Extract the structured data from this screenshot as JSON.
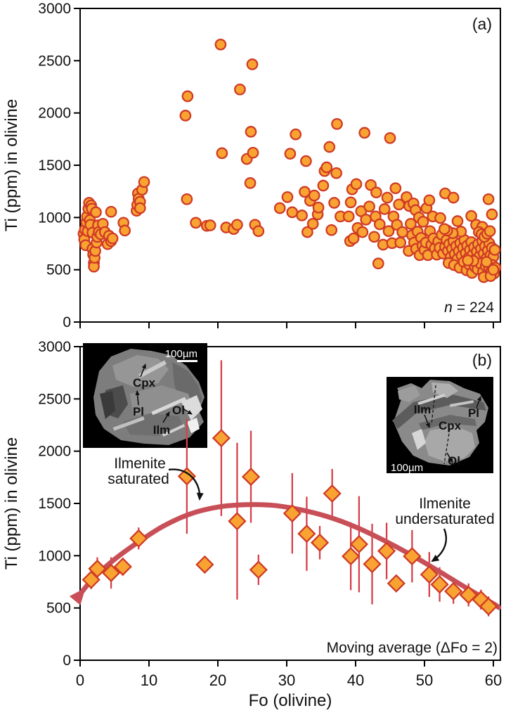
{
  "colors": {
    "marker_fill": "#F9A332",
    "marker_stroke": "#CF3B25",
    "error_bar": "#D6404B",
    "curve": "#C84F57",
    "text": "#111111",
    "background": "#FFFFFF"
  },
  "chart_data": [
    {
      "type": "scatter",
      "panel": "(a)",
      "xlabel": "Fo (olivine)",
      "ylabel": "Ti (ppm) in olivine",
      "xlim": [
        0,
        61
      ],
      "ylim": [
        0,
        3000
      ],
      "xticks": [
        0,
        10,
        20,
        30,
        40,
        50,
        60
      ],
      "yticks": [
        0,
        500,
        1000,
        1500,
        2000,
        2500,
        3000
      ],
      "n_label": {
        "italic": "n",
        "rest": "= 224"
      },
      "points": [
        [
          0.5,
          845
        ],
        [
          0.6,
          790
        ],
        [
          0.7,
          885
        ],
        [
          0.8,
          735
        ],
        [
          0.9,
          955
        ],
        [
          1.0,
          1010
        ],
        [
          1.1,
          870
        ],
        [
          1.2,
          1085
        ],
        [
          1.3,
          1140
        ],
        [
          1.4,
          975
        ],
        [
          1.5,
          930
        ],
        [
          1.6,
          1115
        ],
        [
          1.7,
          1085
        ],
        [
          1.8,
          855
        ],
        [
          1.8,
          700
        ],
        [
          1.9,
          645
        ],
        [
          2.0,
          565
        ],
        [
          2.0,
          530
        ],
        [
          2.1,
          615
        ],
        [
          2.2,
          680
        ],
        [
          2.3,
          1050
        ],
        [
          2.4,
          760
        ],
        [
          2.5,
          815
        ],
        [
          2.6,
          925
        ],
        [
          2.7,
          860
        ],
        [
          3.0,
          840
        ],
        [
          3.3,
          940
        ],
        [
          3.6,
          860
        ],
        [
          4.0,
          745
        ],
        [
          4.2,
          825
        ],
        [
          4.5,
          775
        ],
        [
          4.5,
          1055
        ],
        [
          4.7,
          800
        ],
        [
          6.3,
          950
        ],
        [
          6.5,
          875
        ],
        [
          8.2,
          1065
        ],
        [
          8.3,
          1120
        ],
        [
          8.4,
          1230
        ],
        [
          8.5,
          1180
        ],
        [
          8.7,
          1150
        ],
        [
          8.7,
          1090
        ],
        [
          9.0,
          1265
        ],
        [
          9.3,
          1340
        ],
        [
          15.3,
          1975
        ],
        [
          15.5,
          1175
        ],
        [
          15.6,
          2160
        ],
        [
          16.8,
          950
        ],
        [
          18.4,
          920
        ],
        [
          18.9,
          925
        ],
        [
          20.4,
          2655
        ],
        [
          20.6,
          1615
        ],
        [
          21.2,
          905
        ],
        [
          22.3,
          890
        ],
        [
          22.8,
          930
        ],
        [
          23.2,
          2225
        ],
        [
          24.2,
          1560
        ],
        [
          24.7,
          1330
        ],
        [
          24.8,
          1820
        ],
        [
          25.0,
          2465
        ],
        [
          25.1,
          1620
        ],
        [
          25.4,
          930
        ],
        [
          25.9,
          870
        ],
        [
          29.0,
          1090
        ],
        [
          30.1,
          1195
        ],
        [
          30.5,
          1610
        ],
        [
          30.8,
          1050
        ],
        [
          31.3,
          1795
        ],
        [
          32.2,
          1020
        ],
        [
          32.6,
          1245
        ],
        [
          32.8,
          1540
        ],
        [
          33.0,
          860
        ],
        [
          33.4,
          1160
        ],
        [
          33.8,
          940
        ],
        [
          34.0,
          1210
        ],
        [
          34.5,
          1030
        ],
        [
          34.6,
          1095
        ],
        [
          35.3,
          1305
        ],
        [
          35.5,
          1445
        ],
        [
          35.8,
          1480
        ],
        [
          36.2,
          1675
        ],
        [
          36.5,
          880
        ],
        [
          36.9,
          1140
        ],
        [
          37.2,
          1425
        ],
        [
          37.3,
          1895
        ],
        [
          37.8,
          1010
        ],
        [
          39.0,
          1010
        ],
        [
          39.2,
          775
        ],
        [
          39.3,
          1145
        ],
        [
          39.5,
          1270
        ],
        [
          39.7,
          800
        ],
        [
          40.1,
          1320
        ],
        [
          40.3,
          900
        ],
        [
          40.8,
          1060
        ],
        [
          41.0,
          860
        ],
        [
          41.3,
          1810
        ],
        [
          41.5,
          980
        ],
        [
          42.0,
          1105
        ],
        [
          42.2,
          1310
        ],
        [
          42.7,
          815
        ],
        [
          42.9,
          1010
        ],
        [
          43.0,
          1240
        ],
        [
          43.3,
          560
        ],
        [
          43.5,
          935
        ],
        [
          44.0,
          740
        ],
        [
          44.2,
          1080
        ],
        [
          44.6,
          1190
        ],
        [
          44.8,
          870
        ],
        [
          45.0,
          1760
        ],
        [
          45.3,
          755
        ],
        [
          45.5,
          1010
        ],
        [
          45.8,
          1280
        ],
        [
          46.0,
          930
        ],
        [
          46.3,
          1125
        ],
        [
          46.5,
          760
        ],
        [
          46.8,
          860
        ],
        [
          47.4,
          1195
        ],
        [
          47.7,
          680
        ],
        [
          47.8,
          1110
        ],
        [
          48.0,
          940
        ],
        [
          48.2,
          830
        ],
        [
          48.4,
          1135
        ],
        [
          48.7,
          1070
        ],
        [
          49.2,
          1000
        ],
        [
          49.8,
          960
        ],
        [
          50.3,
          1090
        ],
        [
          50.7,
          1165
        ],
        [
          51.2,
          1010
        ],
        [
          52.3,
          995
        ],
        [
          53.0,
          1230
        ],
        [
          54.2,
          1190
        ],
        [
          54.8,
          965
        ],
        [
          56.8,
          1015
        ],
        [
          57.5,
          930
        ],
        [
          58.4,
          910
        ],
        [
          59.3,
          1175
        ],
        [
          59.8,
          1030
        ],
        [
          48.5,
          760
        ],
        [
          48.8,
          700
        ],
        [
          49.0,
          865
        ],
        [
          49.3,
          640
        ],
        [
          49.5,
          805
        ],
        [
          49.7,
          730
        ],
        [
          50.0,
          690
        ],
        [
          50.2,
          760
        ],
        [
          50.5,
          640
        ],
        [
          50.8,
          870
        ],
        [
          51.0,
          740
        ],
        [
          51.3,
          800
        ],
        [
          51.5,
          705
        ],
        [
          51.8,
          645
        ],
        [
          52.0,
          770
        ],
        [
          52.2,
          710
        ],
        [
          52.5,
          835
        ],
        [
          52.7,
          655
        ],
        [
          53.0,
          720
        ],
        [
          53.2,
          785
        ],
        [
          53.4,
          680
        ],
        [
          53.6,
          745
        ],
        [
          53.8,
          620
        ],
        [
          54.0,
          700
        ],
        [
          54.2,
          775
        ],
        [
          54.4,
          650
        ],
        [
          54.6,
          725
        ],
        [
          54.8,
          605
        ],
        [
          55.0,
          680
        ],
        [
          55.2,
          755
        ],
        [
          55.4,
          635
        ],
        [
          55.6,
          710
        ],
        [
          55.8,
          785
        ],
        [
          56.0,
          660
        ],
        [
          56.2,
          730
        ],
        [
          56.4,
          615
        ],
        [
          56.6,
          690
        ],
        [
          56.8,
          765
        ],
        [
          57.0,
          645
        ],
        [
          57.2,
          715
        ],
        [
          57.4,
          600
        ],
        [
          57.6,
          675
        ],
        [
          57.8,
          745
        ],
        [
          58.0,
          630
        ],
        [
          58.2,
          700
        ],
        [
          58.4,
          775
        ],
        [
          58.6,
          655
        ],
        [
          58.8,
          725
        ],
        [
          59.0,
          610
        ],
        [
          59.2,
          685
        ],
        [
          59.4,
          755
        ],
        [
          59.6,
          640
        ],
        [
          59.8,
          710
        ],
        [
          60.0,
          625
        ],
        [
          60.2,
          690
        ],
        [
          57.9,
          860
        ],
        [
          58.3,
          840
        ],
        [
          58.7,
          815
        ],
        [
          59.1,
          845
        ],
        [
          59.5,
          870
        ],
        [
          55.3,
          865
        ],
        [
          54.1,
          850
        ],
        [
          53.3,
          875
        ],
        [
          52.9,
          890
        ],
        [
          53.5,
          565
        ],
        [
          54.3,
          545
        ],
        [
          55.1,
          520
        ],
        [
          55.7,
          575
        ],
        [
          56.1,
          495
        ],
        [
          56.5,
          550
        ],
        [
          56.9,
          470
        ],
        [
          57.3,
          530
        ],
        [
          57.7,
          505
        ],
        [
          58.1,
          560
        ],
        [
          58.5,
          480
        ],
        [
          58.9,
          535
        ],
        [
          59.2,
          455
        ],
        [
          59.4,
          515
        ],
        [
          59.7,
          485
        ],
        [
          59.9,
          545
        ],
        [
          60.1,
          465
        ],
        [
          60.3,
          520
        ],
        [
          58.6,
          430
        ],
        [
          59.0,
          575
        ],
        [
          59.6,
          440
        ],
        [
          60.0,
          500
        ],
        [
          57.1,
          585
        ],
        [
          56.3,
          590
        ]
      ]
    },
    {
      "type": "scatter-errorbar-line",
      "panel": "(b)",
      "xlabel": "Fo (olivine)",
      "ylabel": "Ti (ppm) in olivine",
      "xlim": [
        0,
        61
      ],
      "ylim": [
        0,
        3000
      ],
      "xticks": [
        0,
        10,
        20,
        30,
        40,
        50,
        60
      ],
      "yticks": [
        0,
        500,
        1000,
        1500,
        2000,
        2500,
        3000
      ],
      "note": "Moving average (ΔFo = 2)",
      "annotations": [
        {
          "line1": "Ilmenite",
          "line2": "saturated"
        },
        {
          "line1": "Ilmenite",
          "line2": "undersaturated"
        }
      ],
      "diamonds": [
        [
          1.6,
          770,
          90
        ],
        [
          2.5,
          875,
          110
        ],
        [
          4.5,
          835,
          150
        ],
        [
          6.2,
          895,
          85
        ],
        [
          8.5,
          1165,
          105
        ],
        [
          15.5,
          1760,
          550
        ],
        [
          18.1,
          915,
          60
        ],
        [
          20.5,
          2125,
          745
        ],
        [
          22.8,
          1330,
          750
        ],
        [
          24.8,
          1755,
          440
        ],
        [
          25.9,
          865,
          145
        ],
        [
          30.8,
          1405,
          385
        ],
        [
          32.9,
          1210,
          355
        ],
        [
          34.8,
          1125,
          160
        ],
        [
          36.6,
          1595,
          235
        ],
        [
          39.3,
          995,
          325
        ],
        [
          40.5,
          1110,
          460
        ],
        [
          42.4,
          920,
          385
        ],
        [
          44.5,
          1045,
          270
        ],
        [
          45.9,
          735,
          60
        ],
        [
          48.2,
          995,
          250
        ],
        [
          50.7,
          820,
          215
        ],
        [
          52.2,
          725,
          165
        ],
        [
          54.2,
          660,
          120
        ],
        [
          56.4,
          625,
          110
        ],
        [
          58.2,
          580,
          95
        ],
        [
          59.3,
          515,
          95
        ]
      ],
      "moving_average": [
        [
          -0.5,
          590
        ],
        [
          2,
          790
        ],
        [
          5,
          965
        ],
        [
          8,
          1110
        ],
        [
          12,
          1280
        ],
        [
          16,
          1400
        ],
        [
          20,
          1465
        ],
        [
          24,
          1488
        ],
        [
          28,
          1482
        ],
        [
          32,
          1440
        ],
        [
          36,
          1372
        ],
        [
          40,
          1275
        ],
        [
          44,
          1150
        ],
        [
          48,
          1010
        ],
        [
          52,
          855
        ],
        [
          56,
          695
        ],
        [
          60,
          540
        ],
        [
          60.8,
          505
        ]
      ],
      "insets": [
        {
          "position": "top-left",
          "scale_label": "100µm",
          "mineral_labels": [
            "Cpx",
            "Pl",
            "Ilm",
            "Ol"
          ]
        },
        {
          "position": "top-right",
          "scale_label": "100µm",
          "mineral_labels": [
            "Ilm",
            "Cpx",
            "Pl",
            "Ol"
          ]
        }
      ]
    }
  ]
}
